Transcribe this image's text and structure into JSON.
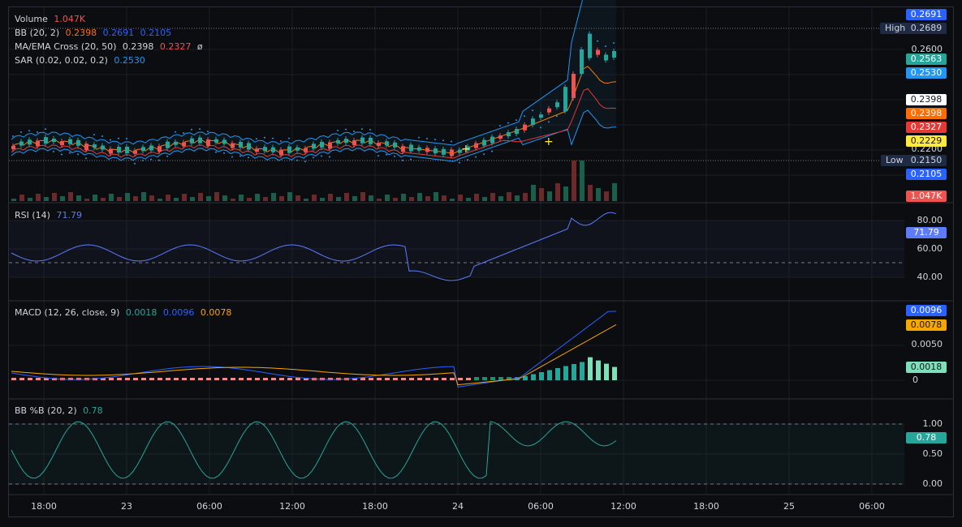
{
  "legends": {
    "volume": {
      "name": "Volume",
      "value": "1.047K"
    },
    "bb": {
      "name": "BB (20, 2)",
      "v1": "0.2398",
      "v2": "0.2691",
      "v3": "0.2105"
    },
    "ma": {
      "name": "MA/EMA Cross (20, 50)",
      "v1": "0.2398",
      "v2": "0.2327",
      "v3": "ø"
    },
    "sar": {
      "name": "SAR (0.02, 0.02, 0.2)",
      "v1": "0.2530"
    },
    "rsi": {
      "name": "RSI (14)",
      "v1": "71.79"
    },
    "macd": {
      "name": "MACD (12, 26, close, 9)",
      "v1": "0.0018",
      "v2": "0.0096",
      "v3": "0.0078"
    },
    "bbpb": {
      "name": "BB %B (20, 2)",
      "v1": "0.78"
    }
  },
  "price_scale": {
    "labels": [
      "0.2600",
      "0.2200"
    ],
    "tags": [
      "0.2691",
      "0.2689",
      "0.2563",
      "0.2530",
      "0.2398",
      "0.2398",
      "0.2327",
      "0.2229",
      "0.2150",
      "0.2105",
      "1.047K"
    ],
    "high_label": "High",
    "low_label": "Low"
  },
  "rsi_scale": {
    "labels": [
      "80.00",
      "60.00",
      "40.00"
    ],
    "tag": "71.79"
  },
  "macd_scale": {
    "labels": [
      "0.0050",
      "0"
    ],
    "tags": [
      "0.0096",
      "0.0078",
      "0.0018"
    ]
  },
  "bbpb_scale": {
    "labels": [
      "1.00",
      "0.50",
      "0.00"
    ],
    "tag": "0.78"
  },
  "time_axis": [
    "18:00",
    "23",
    "06:00",
    "12:00",
    "18:00",
    "24",
    "06:00",
    "12:00",
    "18:00",
    "25",
    "06:00"
  ],
  "colors": {
    "up": "#26a69a",
    "down": "#ef5350",
    "bb_basis": "#ff6d00",
    "bb_band": "#2962ff",
    "ma_fast": "#f57c00",
    "ma_slow": "#e53935",
    "sar": "#2196f3",
    "rsi": "#5c7cfa",
    "macd": "#2962ff",
    "signal": "#f7a600",
    "bbpb": "#26a69a"
  }
}
